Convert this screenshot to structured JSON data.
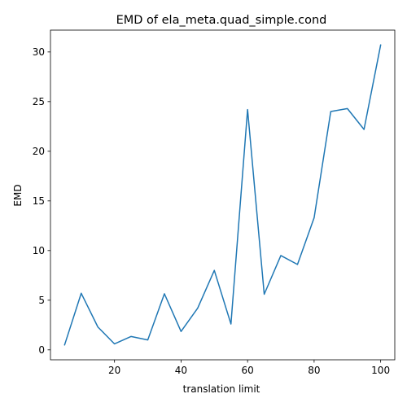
{
  "chart_data": {
    "type": "line",
    "title": "EMD of ela_meta.quad_simple.cond",
    "xlabel": "translation limit",
    "ylabel": "EMD",
    "xlim": [
      0.75,
      104.25
    ],
    "ylim": [
      -1.0,
      32.2
    ],
    "xticks": [
      20,
      40,
      60,
      80,
      100
    ],
    "yticks": [
      0,
      5,
      10,
      15,
      20,
      25,
      30
    ],
    "grid": false,
    "series": [
      {
        "color": "#1f77b4",
        "x": [
          5,
          10,
          15,
          20,
          25,
          30,
          35,
          40,
          45,
          50,
          55,
          60,
          65,
          70,
          75,
          80,
          85,
          90,
          95,
          100
        ],
        "y": [
          0.5,
          5.7,
          2.3,
          0.6,
          1.35,
          1.0,
          5.65,
          1.85,
          4.2,
          8.0,
          2.6,
          24.2,
          5.6,
          9.5,
          8.6,
          13.3,
          24.0,
          24.3,
          22.2,
          30.7
        ]
      }
    ]
  }
}
